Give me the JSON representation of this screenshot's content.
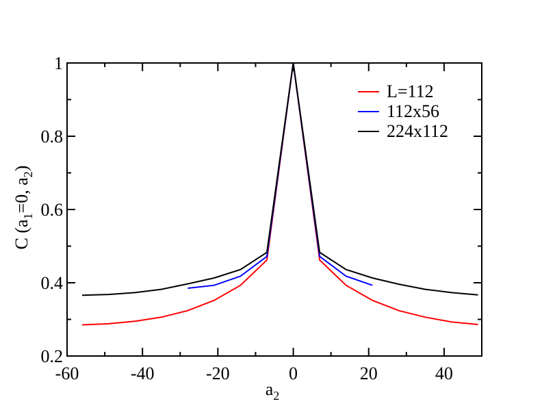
{
  "chart_data": {
    "type": "line",
    "xlabel": {
      "base": "a",
      "sub": "2"
    },
    "ylabel": {
      "pre": "C (a",
      "sub1": "1",
      "mid": "=0, a",
      "sub2": "2",
      "post": ")"
    },
    "xlim": [
      -60,
      50
    ],
    "ylim": [
      0.2,
      1.0
    ],
    "x_ticks": [
      -60,
      -40,
      -20,
      0,
      20,
      40
    ],
    "x_tick_labels": [
      "-60",
      "-40",
      "-20",
      "0",
      "20",
      "40"
    ],
    "y_ticks": [
      0.2,
      0.4,
      0.6,
      0.8,
      1.0
    ],
    "y_tick_labels": [
      "0.2",
      "0.4",
      "0.6",
      "0.8",
      "1"
    ],
    "legend_position": "top-right",
    "series": [
      {
        "name": "L=112",
        "color": "#ff0000",
        "x": [
          -56,
          -49,
          -42,
          -35,
          -28,
          -21,
          -14,
          -7,
          0,
          7,
          14,
          21,
          28,
          35,
          42,
          49
        ],
        "y": [
          0.285,
          0.288,
          0.295,
          0.306,
          0.324,
          0.352,
          0.393,
          0.462,
          1.0,
          0.462,
          0.393,
          0.352,
          0.324,
          0.306,
          0.293,
          0.286
        ]
      },
      {
        "name": "112x56",
        "color": "#0000ff",
        "x": [
          -28,
          -21,
          -14,
          -7,
          0,
          7,
          14,
          21
        ],
        "y": [
          0.385,
          0.393,
          0.418,
          0.472,
          1.0,
          0.472,
          0.418,
          0.393
        ]
      },
      {
        "name": "224x112",
        "color": "#000000",
        "x": [
          -56,
          -49,
          -42,
          -35,
          -28,
          -21,
          -14,
          -7,
          0,
          7,
          14,
          21,
          28,
          35,
          42,
          49
        ],
        "y": [
          0.366,
          0.368,
          0.373,
          0.382,
          0.397,
          0.413,
          0.436,
          0.483,
          1.0,
          0.483,
          0.436,
          0.413,
          0.396,
          0.382,
          0.373,
          0.367
        ]
      }
    ]
  }
}
